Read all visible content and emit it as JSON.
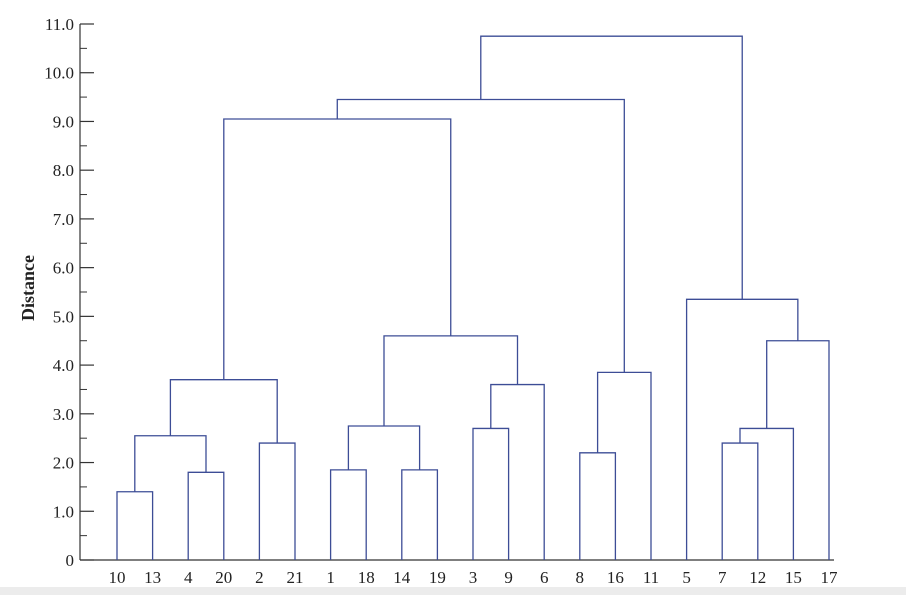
{
  "chart_data": {
    "type": "dendrogram",
    "title": "",
    "xlabel": "",
    "ylabel": "Distance",
    "ylim": [
      0,
      11
    ],
    "y_ticks": [
      "0",
      "1.0",
      "2.0",
      "3.0",
      "4.0",
      "5.0",
      "6.0",
      "7.0",
      "8.0",
      "9.0",
      "10.0",
      "11.0"
    ],
    "leaves": [
      "10",
      "13",
      "4",
      "20",
      "2",
      "21",
      "1",
      "18",
      "14",
      "19",
      "3",
      "9",
      "6",
      "8",
      "16",
      "11",
      "5",
      "7",
      "12",
      "15",
      "17"
    ],
    "merges": [
      {
        "a": "10",
        "b": "13",
        "height": 1.4
      },
      {
        "a": "4",
        "b": "20",
        "height": 1.8
      },
      {
        "a": "2",
        "b": "21",
        "height": 2.4
      },
      {
        "a": "1",
        "b": "18",
        "height": 1.85
      },
      {
        "a": "14",
        "b": "19",
        "height": 1.85
      },
      {
        "a": "3",
        "b": "9",
        "height": 2.7
      },
      {
        "a": "8",
        "b": "16",
        "height": 2.2
      },
      {
        "a": "7",
        "b": "12",
        "height": 2.4
      },
      {
        "a": "{10,13}",
        "b": "{4,20}",
        "height": 2.55
      },
      {
        "a": "{1,18}",
        "b": "{14,19}",
        "height": 2.75
      },
      {
        "a": "{7,12}",
        "b": "15",
        "height": 2.7
      },
      {
        "a": "{3,9}",
        "b": "6",
        "height": 3.6
      },
      {
        "a": "{10,13,4,20}",
        "b": "{2,21}",
        "height": 3.7
      },
      {
        "a": "{8,16}",
        "b": "11",
        "height": 3.85
      },
      {
        "a": "{7,12,15}",
        "b": "17",
        "height": 4.5
      },
      {
        "a": "{1,18,14,19}",
        "b": "{3,9,6}",
        "height": 4.6
      },
      {
        "a": "5",
        "b": "{7,12,15,17}",
        "height": 5.35
      },
      {
        "a": "{10,13,4,20,2,21}",
        "b": "{1,18,14,19,3,9,6}",
        "height": 9.05
      },
      {
        "a": "{10,...,6}",
        "b": "{8,16,11}",
        "height": 9.45
      },
      {
        "a": "{10,...,11}",
        "b": "{5,7,12,15,17}",
        "height": 10.75
      }
    ],
    "line_color": "#3d4d96",
    "axis_color": "#333333"
  }
}
